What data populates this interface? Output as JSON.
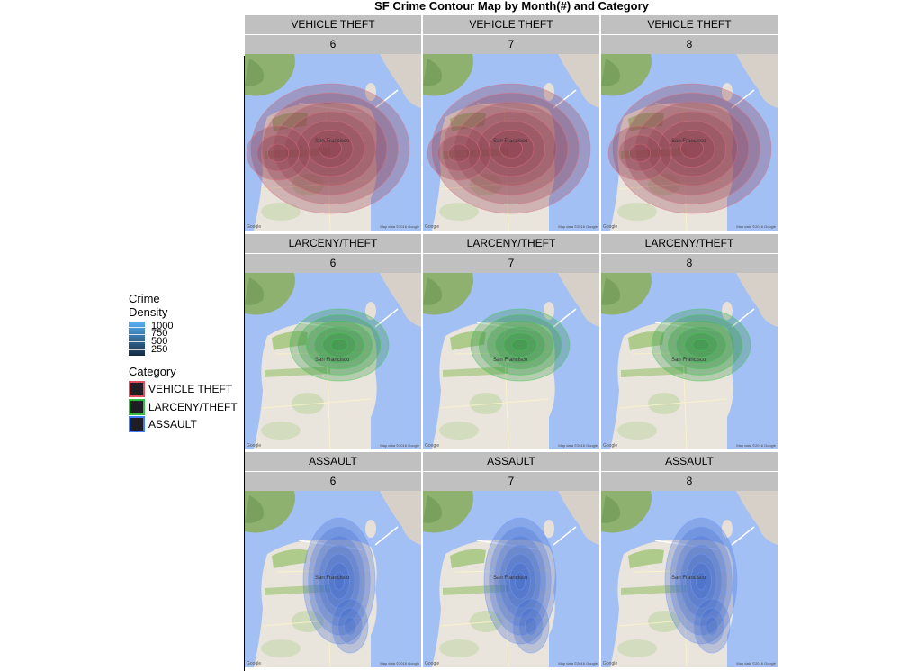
{
  "title": "SF Crime Contour Map by Month(#) and Category",
  "rows": [
    {
      "category": "VEHICLE THEFT",
      "color": "#8b3a4a",
      "stroke": "#e0707f"
    },
    {
      "category": "LARCENY/THEFT",
      "color": "#2f8f3f",
      "stroke": "#3ccf4c"
    },
    {
      "category": "ASSAULT",
      "color": "#3f68c8",
      "stroke": "#6f9cff"
    }
  ],
  "months": [
    "6",
    "7",
    "8"
  ],
  "legend": {
    "density_title_line1": "Crime",
    "density_title_line2": "Density",
    "density_labels": [
      "1000",
      "750",
      "500",
      "250"
    ],
    "density_colors": [
      "#56b1f7",
      "#132b43"
    ],
    "category_title": "Category",
    "categories": [
      {
        "label": "VEHICLE THEFT",
        "border": "#e0505a"
      },
      {
        "label": "LARCENY/THEFT",
        "border": "#30c040"
      },
      {
        "label": "ASSAULT",
        "border": "#4080ff"
      }
    ]
  },
  "map_text": {
    "city_label": "San Francisco",
    "attribution": "Map data ©2016 Google",
    "logo": "Google"
  }
}
